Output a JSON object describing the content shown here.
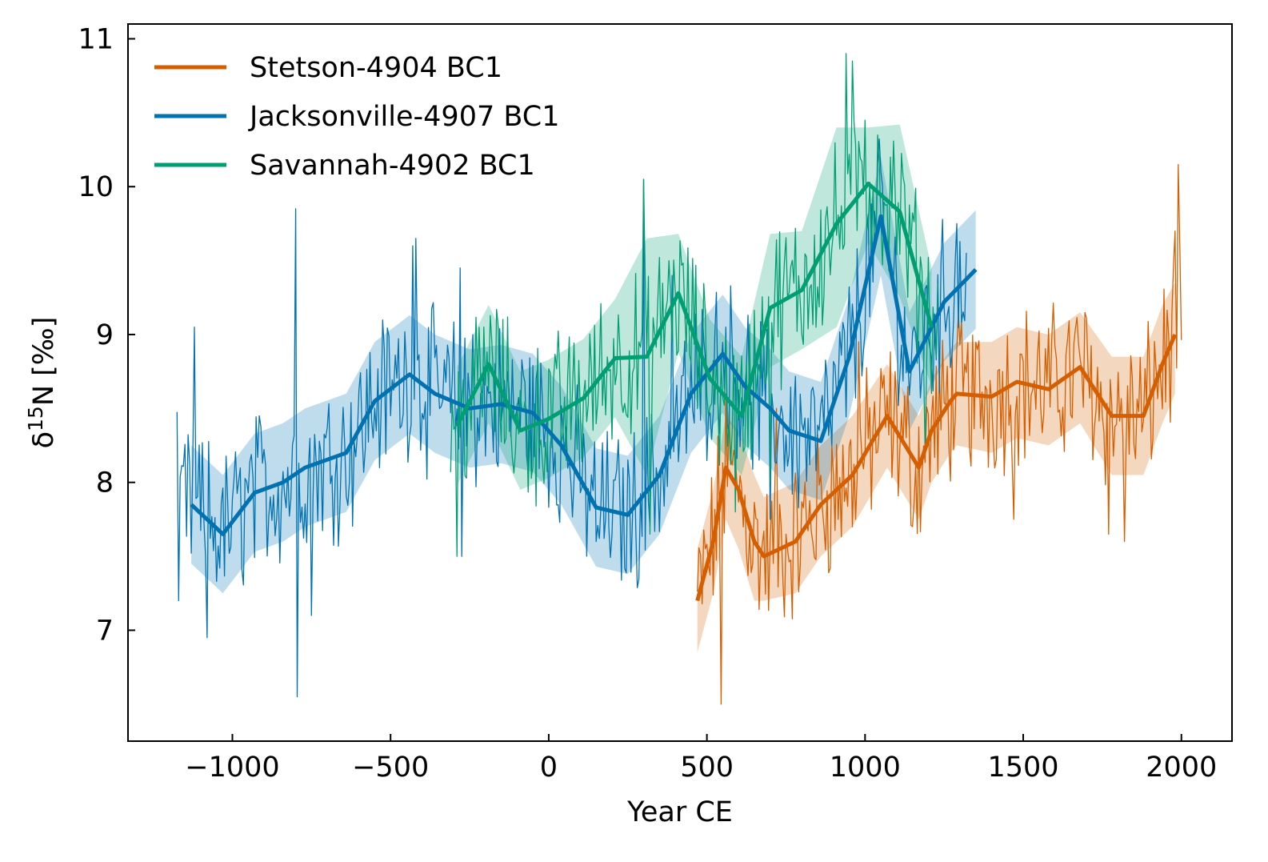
{
  "chart_data": {
    "type": "line",
    "title": "",
    "xlabel": "Year CE",
    "ylabel": "δ15N [‰]",
    "ylabel_parts": {
      "delta": "δ",
      "sup": "15",
      "rest": "N [‰]"
    },
    "xlim": [
      -1330,
      2160
    ],
    "ylim": [
      6.25,
      11.1
    ],
    "xticks": [
      -1000,
      -500,
      0,
      500,
      1000,
      1500,
      2000
    ],
    "xtick_labels": [
      "−1000",
      "−500",
      "0",
      "500",
      "1000",
      "1500",
      "2000"
    ],
    "yticks": [
      7,
      8,
      9,
      10,
      11
    ],
    "ytick_labels": [
      "7",
      "8",
      "9",
      "10",
      "11"
    ],
    "grid": false,
    "legend_position": "top-left",
    "series": [
      {
        "name": "Stetson-4904 BC1",
        "color": "#d55e00",
        "smooth": [
          [
            470,
            7.2
          ],
          [
            520,
            7.6
          ],
          [
            560,
            8.1
          ],
          [
            600,
            7.95
          ],
          [
            650,
            7.6
          ],
          [
            680,
            7.5
          ],
          [
            780,
            7.6
          ],
          [
            860,
            7.85
          ],
          [
            960,
            8.05
          ],
          [
            1070,
            8.45
          ],
          [
            1170,
            8.1
          ],
          [
            1210,
            8.35
          ],
          [
            1270,
            8.55
          ],
          [
            1290,
            8.6
          ],
          [
            1400,
            8.58
          ],
          [
            1480,
            8.68
          ],
          [
            1580,
            8.63
          ],
          [
            1680,
            8.78
          ],
          [
            1780,
            8.45
          ],
          [
            1880,
            8.45
          ],
          [
            1940,
            8.8
          ],
          [
            1980,
            9.0
          ]
        ],
        "band_upper": [
          [
            470,
            7.55
          ],
          [
            520,
            7.95
          ],
          [
            560,
            8.45
          ],
          [
            600,
            8.35
          ],
          [
            650,
            8.05
          ],
          [
            680,
            7.9
          ],
          [
            780,
            8.0
          ],
          [
            860,
            8.25
          ],
          [
            960,
            8.45
          ],
          [
            1070,
            8.8
          ],
          [
            1170,
            8.45
          ],
          [
            1210,
            8.7
          ],
          [
            1270,
            8.9
          ],
          [
            1290,
            8.95
          ],
          [
            1400,
            8.95
          ],
          [
            1480,
            9.05
          ],
          [
            1580,
            9.0
          ],
          [
            1680,
            9.15
          ],
          [
            1780,
            8.85
          ],
          [
            1880,
            8.85
          ],
          [
            1940,
            9.2
          ],
          [
            1980,
            9.35
          ]
        ],
        "band_lower": [
          [
            470,
            6.85
          ],
          [
            520,
            7.25
          ],
          [
            560,
            7.75
          ],
          [
            600,
            7.55
          ],
          [
            650,
            7.2
          ],
          [
            680,
            7.2
          ],
          [
            780,
            7.25
          ],
          [
            860,
            7.5
          ],
          [
            960,
            7.7
          ],
          [
            1070,
            8.1
          ],
          [
            1170,
            7.75
          ],
          [
            1210,
            8.0
          ],
          [
            1270,
            8.2
          ],
          [
            1290,
            8.25
          ],
          [
            1400,
            8.2
          ],
          [
            1480,
            8.3
          ],
          [
            1580,
            8.25
          ],
          [
            1680,
            8.4
          ],
          [
            1780,
            8.05
          ],
          [
            1880,
            8.05
          ],
          [
            1940,
            8.4
          ],
          [
            1980,
            8.6
          ]
        ],
        "raw_start": 470,
        "raw_end": 2000,
        "raw_spikes": [
          [
            560,
            8.6
          ],
          [
            545,
            6.5
          ],
          [
            720,
            8.5
          ],
          [
            980,
            8.95
          ],
          [
            1150,
            7.7
          ],
          [
            1470,
            7.75
          ],
          [
            1770,
            7.65
          ],
          [
            1820,
            7.6
          ],
          [
            1990,
            10.15
          ],
          [
            1980,
            9.7
          ],
          [
            1995,
            9.6
          ]
        ]
      },
      {
        "name": "Jacksonville-4907 BC1",
        "color": "#0072b2",
        "smooth": [
          [
            -1130,
            7.85
          ],
          [
            -1030,
            7.65
          ],
          [
            -930,
            7.93
          ],
          [
            -840,
            8.0
          ],
          [
            -770,
            8.1
          ],
          [
            -640,
            8.2
          ],
          [
            -550,
            8.55
          ],
          [
            -440,
            8.73
          ],
          [
            -360,
            8.6
          ],
          [
            -250,
            8.5
          ],
          [
            -150,
            8.53
          ],
          [
            -50,
            8.47
          ],
          [
            40,
            8.25
          ],
          [
            150,
            7.83
          ],
          [
            250,
            7.78
          ],
          [
            350,
            8.05
          ],
          [
            450,
            8.6
          ],
          [
            550,
            8.87
          ],
          [
            620,
            8.65
          ],
          [
            700,
            8.5
          ],
          [
            760,
            8.35
          ],
          [
            860,
            8.28
          ],
          [
            950,
            8.85
          ],
          [
            1050,
            9.8
          ],
          [
            1140,
            8.75
          ],
          [
            1250,
            9.22
          ],
          [
            1350,
            9.44
          ]
        ],
        "band_upper": [
          [
            -1130,
            8.25
          ],
          [
            -1030,
            8.05
          ],
          [
            -930,
            8.33
          ],
          [
            -840,
            8.4
          ],
          [
            -770,
            8.5
          ],
          [
            -640,
            8.6
          ],
          [
            -550,
            8.95
          ],
          [
            -440,
            9.13
          ],
          [
            -360,
            9.0
          ],
          [
            -250,
            8.9
          ],
          [
            -150,
            8.93
          ],
          [
            -50,
            8.87
          ],
          [
            40,
            8.65
          ],
          [
            150,
            8.23
          ],
          [
            250,
            8.18
          ],
          [
            350,
            8.45
          ],
          [
            450,
            9.0
          ],
          [
            550,
            9.27
          ],
          [
            620,
            9.05
          ],
          [
            700,
            8.9
          ],
          [
            760,
            8.75
          ],
          [
            860,
            8.68
          ],
          [
            950,
            9.25
          ],
          [
            1050,
            10.2
          ],
          [
            1140,
            9.15
          ],
          [
            1250,
            9.62
          ],
          [
            1350,
            9.84
          ]
        ],
        "band_lower": [
          [
            -1130,
            7.45
          ],
          [
            -1030,
            7.25
          ],
          [
            -930,
            7.53
          ],
          [
            -840,
            7.6
          ],
          [
            -770,
            7.7
          ],
          [
            -640,
            7.8
          ],
          [
            -550,
            8.15
          ],
          [
            -440,
            8.33
          ],
          [
            -360,
            8.2
          ],
          [
            -250,
            8.1
          ],
          [
            -150,
            8.13
          ],
          [
            -50,
            8.07
          ],
          [
            40,
            7.85
          ],
          [
            150,
            7.43
          ],
          [
            250,
            7.38
          ],
          [
            350,
            7.65
          ],
          [
            450,
            8.2
          ],
          [
            550,
            8.47
          ],
          [
            620,
            8.25
          ],
          [
            700,
            8.1
          ],
          [
            760,
            7.95
          ],
          [
            860,
            7.88
          ],
          [
            950,
            8.45
          ],
          [
            1050,
            9.4
          ],
          [
            1140,
            8.35
          ],
          [
            1250,
            8.82
          ],
          [
            1350,
            9.04
          ]
        ],
        "raw_start": -1175,
        "raw_end": 1320,
        "raw_spikes": [
          [
            -1170,
            7.2
          ],
          [
            -1120,
            9.05
          ],
          [
            -1080,
            6.95
          ],
          [
            -800,
            9.85
          ],
          [
            -795,
            6.55
          ],
          [
            -750,
            7.1
          ],
          [
            -430,
            9.6
          ],
          [
            -420,
            9.65
          ],
          [
            -280,
            9.45
          ],
          [
            -275,
            7.5
          ],
          [
            -240,
            9.0
          ],
          [
            150,
            7.6
          ],
          [
            300,
            10.05
          ],
          [
            390,
            9.4
          ],
          [
            560,
            9.05
          ],
          [
            700,
            7.75
          ],
          [
            1050,
            10.1
          ],
          [
            1290,
            9.75
          ]
        ]
      },
      {
        "name": "Savannah-4902 BC1",
        "color": "#009e73",
        "smooth": [
          [
            -290,
            8.38
          ],
          [
            -190,
            8.8
          ],
          [
            -90,
            8.35
          ],
          [
            0,
            8.43
          ],
          [
            110,
            8.57
          ],
          [
            210,
            8.84
          ],
          [
            310,
            8.85
          ],
          [
            410,
            9.28
          ],
          [
            510,
            8.7
          ],
          [
            610,
            8.45
          ],
          [
            700,
            9.18
          ],
          [
            800,
            9.3
          ],
          [
            910,
            9.75
          ],
          [
            1010,
            10.02
          ],
          [
            1110,
            9.83
          ],
          [
            1210,
            9.05
          ]
        ],
        "band_upper": [
          [
            -290,
            8.78
          ],
          [
            -190,
            9.2
          ],
          [
            -90,
            8.75
          ],
          [
            0,
            8.83
          ],
          [
            110,
            8.97
          ],
          [
            210,
            9.24
          ],
          [
            310,
            9.65
          ],
          [
            410,
            9.68
          ],
          [
            510,
            9.1
          ],
          [
            610,
            8.85
          ],
          [
            700,
            9.68
          ],
          [
            800,
            9.7
          ],
          [
            910,
            10.4
          ],
          [
            1010,
            10.4
          ],
          [
            1110,
            10.42
          ],
          [
            1210,
            9.45
          ]
        ],
        "band_lower": [
          [
            -290,
            7.98
          ],
          [
            -190,
            8.4
          ],
          [
            -90,
            7.95
          ],
          [
            0,
            8.03
          ],
          [
            110,
            8.17
          ],
          [
            210,
            8.44
          ],
          [
            310,
            8.05
          ],
          [
            410,
            8.88
          ],
          [
            510,
            8.3
          ],
          [
            610,
            8.05
          ],
          [
            700,
            8.78
          ],
          [
            800,
            8.9
          ],
          [
            910,
            9.05
          ],
          [
            1010,
            9.62
          ],
          [
            1110,
            9.25
          ],
          [
            1210,
            8.65
          ]
        ],
        "raw_start": -310,
        "raw_end": 1230,
        "raw_spikes": [
          [
            -290,
            7.5
          ],
          [
            300,
            10.05
          ],
          [
            320,
            7.65
          ],
          [
            380,
            9.5
          ],
          [
            590,
            7.8
          ],
          [
            700,
            8.0
          ],
          [
            940,
            10.9
          ],
          [
            960,
            10.85
          ],
          [
            1000,
            10.45
          ],
          [
            1040,
            10.35
          ],
          [
            1080,
            10.2
          ],
          [
            1190,
            8.2
          ]
        ]
      }
    ]
  }
}
